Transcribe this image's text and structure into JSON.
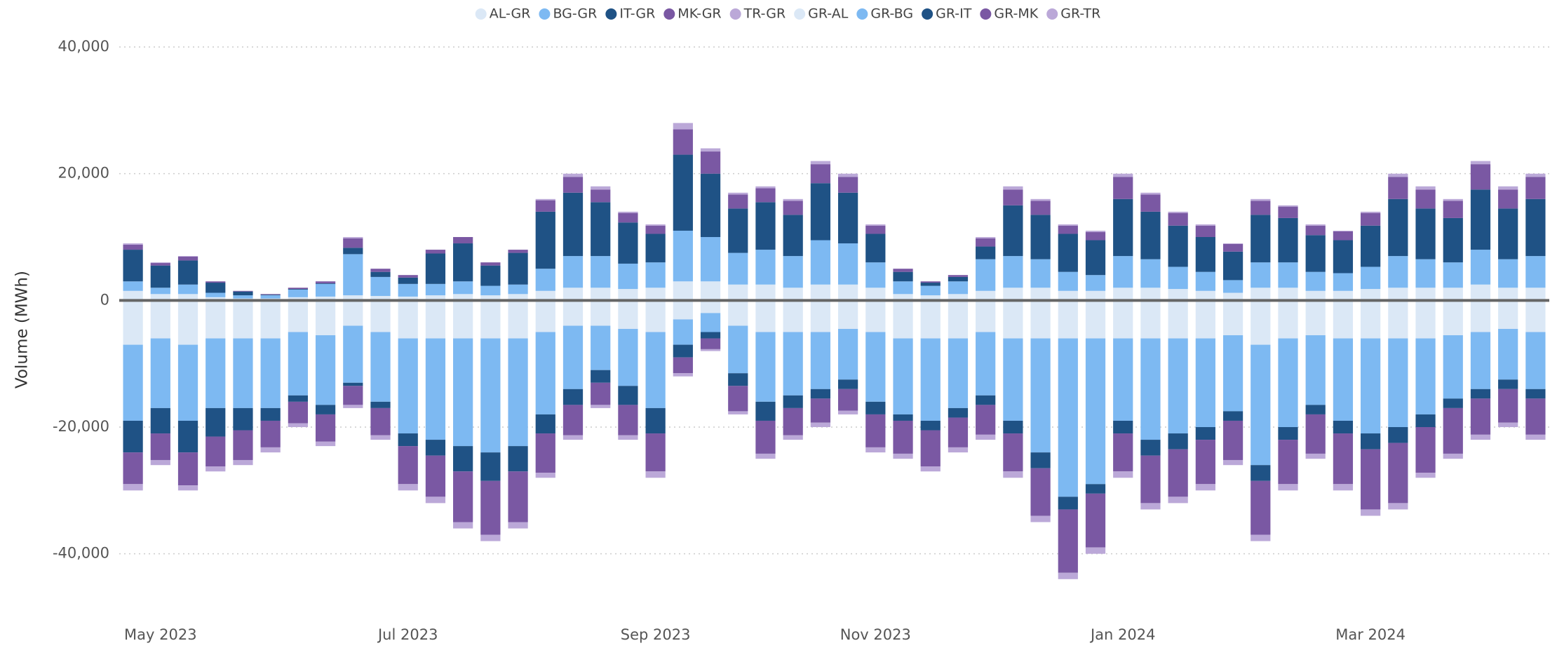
{
  "chart_data": {
    "type": "bar",
    "stacked": true,
    "y_label": "Volume (MWh)",
    "categories": [
      null,
      "May 2023",
      null,
      null,
      null,
      null,
      null,
      null,
      null,
      null,
      "Jul 2023",
      null,
      null,
      null,
      null,
      null,
      null,
      null,
      null,
      "Sep 2023",
      null,
      null,
      null,
      null,
      null,
      null,
      null,
      "Nov 2023",
      null,
      null,
      null,
      null,
      null,
      null,
      null,
      null,
      "Jan 2024",
      null,
      null,
      null,
      null,
      null,
      null,
      null,
      null,
      "Mar 2024",
      null,
      null,
      null,
      null,
      null,
      null
    ],
    "ylim": [
      -50000,
      40000
    ],
    "yticks": [
      {
        "value": -40000,
        "label": "-40,000"
      },
      {
        "value": -20000,
        "label": "-20,000"
      },
      0,
      {
        "value": 20000,
        "label": "20,000"
      },
      {
        "value": 40000,
        "label": "40,000"
      }
    ],
    "grid": true,
    "legend": "top",
    "series": [
      {
        "name": "AL-GR",
        "color": "#dbe8f6",
        "values": [
          1500,
          1000,
          1000,
          500,
          300,
          300,
          500,
          600,
          800,
          700,
          600,
          800,
          1000,
          800,
          1000,
          1500,
          2000,
          2000,
          1800,
          2000,
          3000,
          3000,
          2500,
          2500,
          2000,
          2500,
          2500,
          2000,
          1000,
          800,
          1000,
          1500,
          2000,
          2000,
          1500,
          1500,
          2000,
          2000,
          1800,
          1500,
          1200,
          2000,
          2000,
          1500,
          1500,
          1800,
          2000,
          2000,
          2000,
          2500,
          2000,
          2000
        ]
      },
      {
        "name": "BG-GR",
        "color": "#7db9f2",
        "values": [
          1500,
          1000,
          1500,
          700,
          500,
          500,
          1200,
          2000,
          6500,
          3000,
          2000,
          1800,
          2000,
          1500,
          1500,
          3500,
          5000,
          5000,
          4000,
          4000,
          8000,
          7000,
          5000,
          5500,
          5000,
          7000,
          6500,
          4000,
          2000,
          1500,
          2000,
          5000,
          5000,
          4500,
          3000,
          2500,
          5000,
          4500,
          3500,
          3000,
          2000,
          4000,
          4000,
          3000,
          2800,
          3500,
          5000,
          4500,
          4000,
          5500,
          4500,
          5000
        ]
      },
      {
        "name": "IT-GR",
        "color": "#1f5285",
        "values": [
          5000,
          3500,
          3800,
          1600,
          600,
          100,
          100,
          100,
          1000,
          800,
          1000,
          4800,
          6000,
          3200,
          5000,
          9000,
          10000,
          8500,
          6500,
          4500,
          12000,
          10000,
          7000,
          7500,
          6500,
          9000,
          8000,
          4500,
          1500,
          500,
          700,
          2000,
          8000,
          7000,
          6000,
          5500,
          9000,
          7500,
          6500,
          5500,
          4500,
          7500,
          7000,
          5800,
          5200,
          6500,
          9000,
          8000,
          7000,
          9500,
          8000,
          9000
        ]
      },
      {
        "name": "MK-GR",
        "color": "#7a58a3",
        "values": [
          800,
          400,
          600,
          200,
          100,
          100,
          200,
          300,
          1500,
          500,
          400,
          600,
          1000,
          500,
          500,
          1800,
          2500,
          2000,
          1500,
          1300,
          4000,
          3500,
          2200,
          2200,
          2200,
          3000,
          2500,
          1300,
          500,
          200,
          300,
          1300,
          2500,
          2200,
          1300,
          1300,
          3500,
          2700,
          2000,
          1800,
          1200,
          2200,
          1800,
          1500,
          1400,
          2000,
          3500,
          3000,
          2700,
          4000,
          3000,
          3500
        ]
      },
      {
        "name": "TR-GR",
        "color": "#bba8d8",
        "values": [
          200,
          100,
          100,
          0,
          0,
          0,
          0,
          0,
          200,
          0,
          0,
          0,
          0,
          0,
          0,
          200,
          500,
          500,
          200,
          200,
          1000,
          500,
          300,
          300,
          300,
          500,
          500,
          200,
          0,
          0,
          0,
          200,
          500,
          300,
          200,
          200,
          500,
          300,
          200,
          200,
          100,
          300,
          200,
          200,
          100,
          200,
          500,
          500,
          300,
          500,
          500,
          500
        ]
      },
      {
        "name": "GR-AL",
        "color": "#dbe8f6",
        "values": [
          -7000,
          -6000,
          -7000,
          -6000,
          -6000,
          -6000,
          -5000,
          -5500,
          -4000,
          -5000,
          -6000,
          -6000,
          -6000,
          -6000,
          -6000,
          -5000,
          -4000,
          -4000,
          -4500,
          -5000,
          -3000,
          -2000,
          -4000,
          -5000,
          -5000,
          -5000,
          -4500,
          -5000,
          -6000,
          -6000,
          -6000,
          -5000,
          -6000,
          -6000,
          -6000,
          -6000,
          -6000,
          -6000,
          -6000,
          -6000,
          -5500,
          -7000,
          -6000,
          -5500,
          -6000,
          -6000,
          -6000,
          -6000,
          -5500,
          -5000,
          -4500,
          -5000
        ]
      },
      {
        "name": "GR-BG",
        "color": "#7db9f2",
        "values": [
          -12000,
          -11000,
          -12000,
          -11000,
          -11000,
          -11000,
          -10000,
          -11000,
          -9000,
          -11000,
          -15000,
          -16000,
          -17000,
          -18000,
          -17000,
          -13000,
          -10000,
          -7000,
          -9000,
          -12000,
          -4000,
          -3000,
          -7500,
          -11000,
          -10000,
          -9000,
          -8000,
          -11000,
          -12000,
          -13000,
          -11000,
          -10000,
          -13000,
          -18000,
          -25000,
          -23000,
          -13000,
          -16000,
          -15000,
          -14000,
          -12000,
          -19000,
          -14000,
          -11000,
          -13000,
          -15000,
          -14000,
          -12000,
          -10000,
          -9000,
          -8000,
          -9000
        ]
      },
      {
        "name": "GR-IT",
        "color": "#1f5285",
        "values": [
          -5000,
          -4000,
          -5000,
          -4500,
          -3500,
          -2000,
          -1000,
          -1500,
          -500,
          -1000,
          -2000,
          -2500,
          -4000,
          -4500,
          -4000,
          -3000,
          -2500,
          -2000,
          -3000,
          -4000,
          -2000,
          -1000,
          -2000,
          -3000,
          -2000,
          -1500,
          -1500,
          -2000,
          -1000,
          -1500,
          -1500,
          -1500,
          -2000,
          -2500,
          -2000,
          -1500,
          -2000,
          -2500,
          -2500,
          -2000,
          -1500,
          -2500,
          -2000,
          -1500,
          -2000,
          -2500,
          -2500,
          -2000,
          -1500,
          -1500,
          -1500,
          -1500
        ]
      },
      {
        "name": "GR-MK",
        "color": "#7a58a3",
        "values": [
          -5000,
          -4200,
          -5200,
          -4700,
          -4700,
          -4200,
          -3400,
          -4300,
          -3000,
          -4300,
          -6000,
          -6500,
          -8000,
          -8500,
          -8000,
          -6200,
          -4800,
          -3500,
          -4800,
          -6000,
          -2500,
          -1700,
          -4000,
          -5200,
          -4300,
          -3800,
          -3400,
          -5200,
          -5200,
          -5700,
          -4700,
          -4700,
          -6000,
          -7500,
          -10000,
          -8500,
          -6000,
          -7500,
          -7500,
          -7000,
          -6200,
          -8500,
          -7000,
          -6200,
          -8000,
          -9500,
          -9500,
          -7200,
          -7200,
          -5700,
          -5300,
          -5700
        ]
      },
      {
        "name": "GR-TR",
        "color": "#bba8d8",
        "values": [
          -1000,
          -800,
          -800,
          -800,
          -800,
          -800,
          -600,
          -700,
          -500,
          -700,
          -1000,
          -1000,
          -1000,
          -1000,
          -1000,
          -800,
          -700,
          -500,
          -700,
          -1000,
          -500,
          -300,
          -500,
          -800,
          -700,
          -700,
          -600,
          -800,
          -800,
          -800,
          -800,
          -800,
          -1000,
          -1000,
          -1000,
          -1000,
          -1000,
          -1000,
          -1000,
          -1000,
          -800,
          -1000,
          -1000,
          -800,
          -1000,
          -1000,
          -1000,
          -800,
          -800,
          -800,
          -700,
          -800
        ]
      }
    ]
  }
}
